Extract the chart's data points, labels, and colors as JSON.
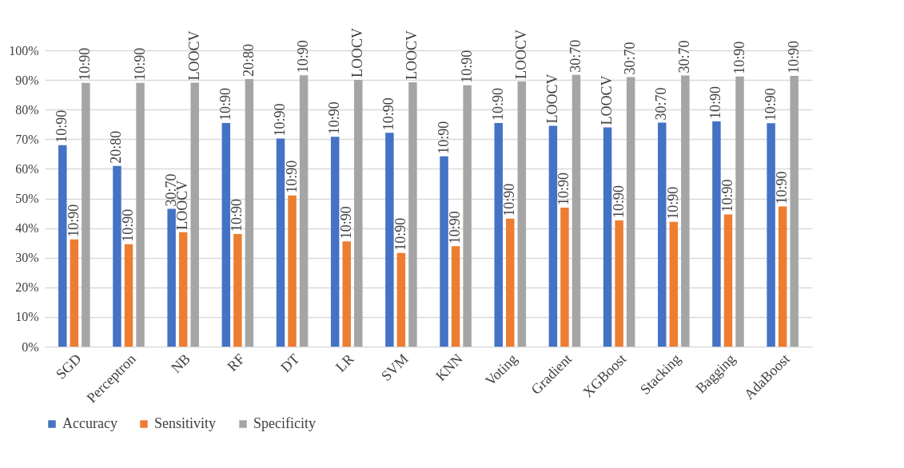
{
  "chart_data": {
    "type": "bar",
    "categories": [
      "SGD",
      "Perceptron",
      "NB",
      "RF",
      "DT",
      "LR",
      "SVM",
      "KNN",
      "Voting",
      "Gradient",
      "XGBoost",
      "Stacking",
      "Bagging",
      "AdaBoost"
    ],
    "series": [
      {
        "name": "Accuracy",
        "color": "#4472c4",
        "values": [
          68,
          61,
          46.5,
          75.5,
          70.2,
          70.8,
          72.2,
          64.2,
          75.5,
          74.5,
          74,
          75.6,
          76,
          75.4
        ]
      },
      {
        "name": "Sensitivity",
        "color": "#ed7d31",
        "values": [
          36.2,
          34.6,
          38.6,
          38,
          51,
          35.5,
          31.6,
          33.9,
          43.2,
          46.9,
          42.6,
          42.1,
          44.6,
          47.3
        ]
      },
      {
        "name": "Specificity",
        "color": "#a5a5a5",
        "values": [
          89,
          89,
          89.1,
          90.3,
          91.6,
          90,
          89.2,
          88.2,
          89.5,
          91.7,
          91,
          91.5,
          91.2,
          91.4
        ]
      }
    ],
    "annotations": [
      {
        "text": "10:90",
        "x": "SGD",
        "y": 68
      },
      {
        "text": "20:80",
        "x": "Perceptron",
        "y": 61
      },
      {
        "text": "30:70",
        "x": "NB",
        "y": 46.5
      },
      {
        "text": "10:90",
        "x": "RF",
        "y": 75.5
      },
      {
        "text": "10:90",
        "x": "DT",
        "y": 70.2
      },
      {
        "text": "10:90",
        "x": "LR",
        "y": 70.8
      },
      {
        "text": "10:90",
        "x": "SVM",
        "y": 72.2
      },
      {
        "text": "10:90",
        "x": "KNN",
        "y": 64.2
      },
      {
        "text": "10:90",
        "x": "Voting",
        "y": 75.5
      },
      {
        "text": "LOOCV",
        "x": "Gradient",
        "y": 74.5
      },
      {
        "text": "LOOCV",
        "x": "XGBoost",
        "y": 74
      },
      {
        "text": "30:70",
        "x": "Stacking",
        "y": 75.6
      },
      {
        "text": "10:90",
        "x": "Bagging",
        "y": 76
      },
      {
        "text": "10:90",
        "x": "AdaBoost",
        "y": 75.4
      },
      {
        "text": "10:90",
        "x": "SGD",
        "y": 36.2
      },
      {
        "text": "10:90",
        "x": "Perceptron",
        "y": 34.6
      },
      {
        "text": "LOOCV",
        "x": "NB",
        "y": 38.6
      },
      {
        "text": "10:90",
        "x": "RF",
        "y": 38
      },
      {
        "text": "10:90",
        "x": "DT",
        "y": 51
      },
      {
        "text": "10:90",
        "x": "LR",
        "y": 35.5
      },
      {
        "text": "10:90",
        "x": "SVM",
        "y": 31.6
      },
      {
        "text": "10:90",
        "x": "KNN",
        "y": 33.9
      },
      {
        "text": "10:90",
        "x": "Voting",
        "y": 43.2
      },
      {
        "text": "10:90",
        "x": "Gradient",
        "y": 46.9
      },
      {
        "text": "10:90",
        "x": "XGBoost",
        "y": 42.6
      },
      {
        "text": "10:90",
        "x": "Stacking",
        "y": 42.1
      },
      {
        "text": "10:90",
        "x": "Bagging",
        "y": 44.6
      },
      {
        "text": "10:90",
        "x": "AdaBoost",
        "y": 47.3
      },
      {
        "text": "10:90",
        "x": "SGD",
        "y": 89
      },
      {
        "text": "10:90",
        "x": "Perceptron",
        "y": 89
      },
      {
        "text": "LOOCV",
        "x": "NB",
        "y": 89.1
      },
      {
        "text": "20:80",
        "x": "RF",
        "y": 90.3
      },
      {
        "text": "10:90",
        "x": "DT",
        "y": 91.6
      },
      {
        "text": "LOOCV",
        "x": "LR",
        "y": 90
      },
      {
        "text": "LOOCV",
        "x": "SVM",
        "y": 89.2
      },
      {
        "text": "10:90",
        "x": "KNN",
        "y": 88.2
      },
      {
        "text": "LOOCV",
        "x": "Voting",
        "y": 89.5
      },
      {
        "text": "30:70",
        "x": "Gradient",
        "y": 91.7
      },
      {
        "text": "30:70",
        "x": "XGBoost",
        "y": 91
      },
      {
        "text": "30:70",
        "x": "Stacking",
        "y": 91.5
      },
      {
        "text": "10:90",
        "x": "Bagging",
        "y": 91.2
      },
      {
        "text": "10:90",
        "x": "AdaBoost",
        "y": 91.4
      }
    ],
    "ylim": [
      0,
      100
    ],
    "yticks": [
      {
        "value": 0,
        "label": "0%"
      },
      {
        "value": 10,
        "label": "10%"
      },
      {
        "value": 20,
        "label": "20%"
      },
      {
        "value": 30,
        "label": "30%"
      },
      {
        "value": 40,
        "label": "40%"
      },
      {
        "value": 50,
        "label": "50%"
      },
      {
        "value": 60,
        "label": "60%"
      },
      {
        "value": 70,
        "label": "70%"
      },
      {
        "value": 80,
        "label": "80%"
      },
      {
        "value": 90,
        "label": "90%"
      },
      {
        "value": 100,
        "label": "100%"
      }
    ],
    "grid": "y",
    "legend": "bottom"
  }
}
